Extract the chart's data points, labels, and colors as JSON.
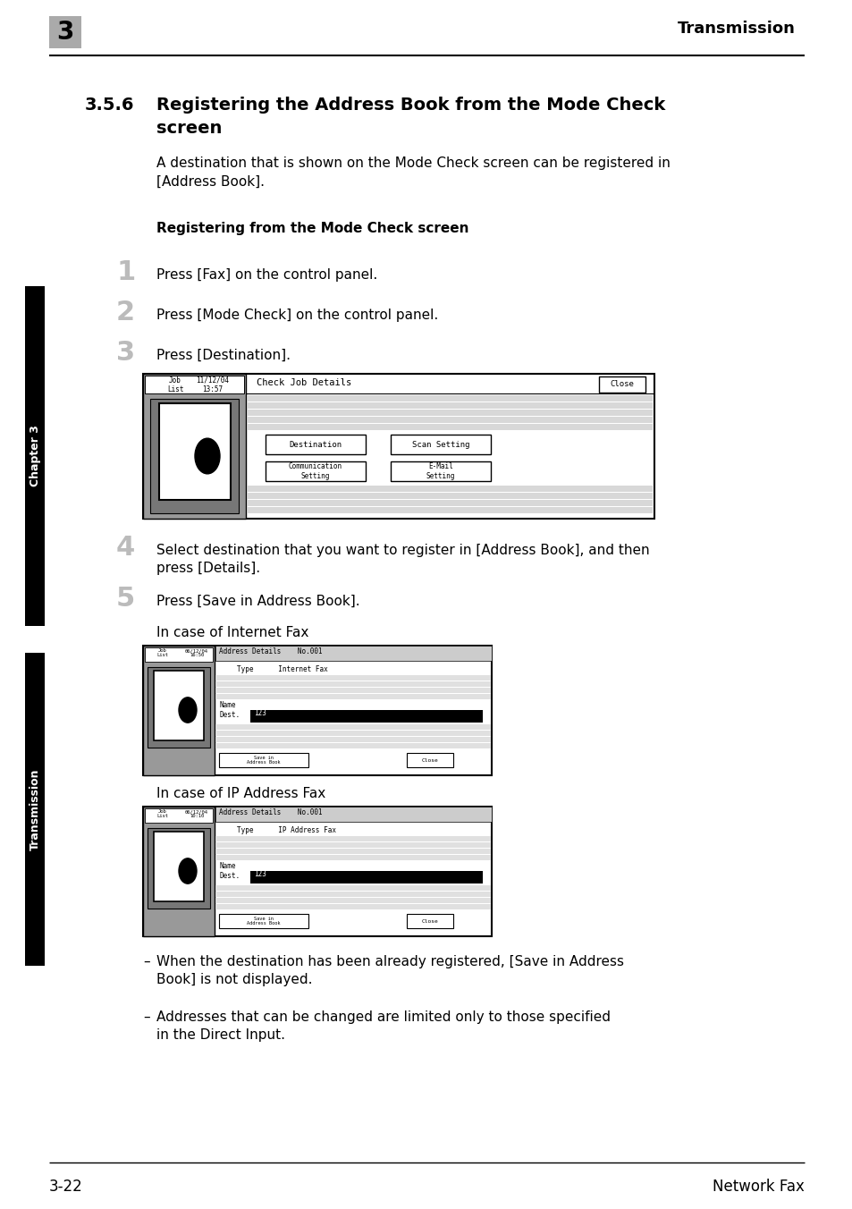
{
  "bg_color": "#ffffff",
  "header_number": "3",
  "header_number_bg": "#aaaaaa",
  "header_title": "Transmission",
  "footer_left": "3-22",
  "footer_right": "Network Fax",
  "section_number": "3.5.6",
  "section_title_line1": "Registering the Address Book from the Mode Check",
  "section_title_line2": "screen",
  "intro_text": "A destination that is shown on the Mode Check screen can be registered in\n[Address Book].",
  "subsection_title": "Registering from the Mode Check screen",
  "steps": [
    {
      "num": "1",
      "text": "Press [Fax] on the control panel."
    },
    {
      "num": "2",
      "text": "Press [Mode Check] on the control panel."
    },
    {
      "num": "3",
      "text": "Press [Destination]."
    },
    {
      "num": "4",
      "text": "Select destination that you want to register in [Address Book], and then\npress [Details]."
    },
    {
      "num": "5",
      "text": "Press [Save in Address Book]."
    }
  ],
  "notes": [
    "When the destination has been already registered, [Save in Address\nBook] is not displayed.",
    "Addresses that can be changed are limited only to those specified\nin the Direct Input."
  ],
  "sidebar_text_top": "Chapter 3",
  "sidebar_text_bottom": "Transmission",
  "page_width": 9.54,
  "page_height": 13.52
}
